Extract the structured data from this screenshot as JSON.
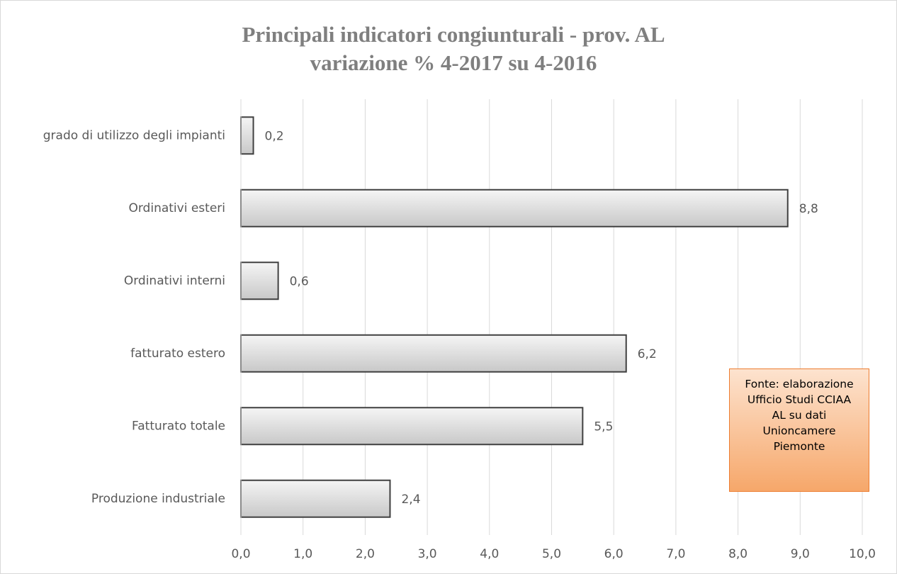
{
  "chart_data": {
    "type": "bar",
    "orientation": "horizontal",
    "title": "Principali indicatori  congiunturali  - prov. AL",
    "subtitle": "variazione  % 4-2017 su 4-2016",
    "categories": [
      "grado di utilizzo degli impianti",
      "Ordinativi esteri",
      "Ordinativi interni",
      "fatturato estero",
      "Fatturato totale",
      "Produzione industriale"
    ],
    "values": [
      0.2,
      8.8,
      0.6,
      6.2,
      5.5,
      2.4
    ],
    "value_labels": [
      "0,2",
      "8,8",
      "0,6",
      "6,2",
      "5,5",
      "2,4"
    ],
    "color": "#d9d9d9",
    "xlim": [
      0,
      10
    ],
    "xticks": [
      {
        "value": 0,
        "label": "0,0"
      },
      {
        "value": 1,
        "label": "1,0"
      },
      {
        "value": 2,
        "label": "2,0"
      },
      {
        "value": 3,
        "label": "3,0"
      },
      {
        "value": 4,
        "label": "4,0"
      },
      {
        "value": 5,
        "label": "5,0"
      },
      {
        "value": 6,
        "label": "6,0"
      },
      {
        "value": 7,
        "label": "7,0"
      },
      {
        "value": 8,
        "label": "8,0"
      },
      {
        "value": 9,
        "label": "9,0"
      },
      {
        "value": 10,
        "label": "10,0"
      }
    ],
    "grid": true,
    "annotation": "Fonte: elaborazione Ufficio Studi CCIAA AL su dati Unioncamere Piemonte"
  }
}
